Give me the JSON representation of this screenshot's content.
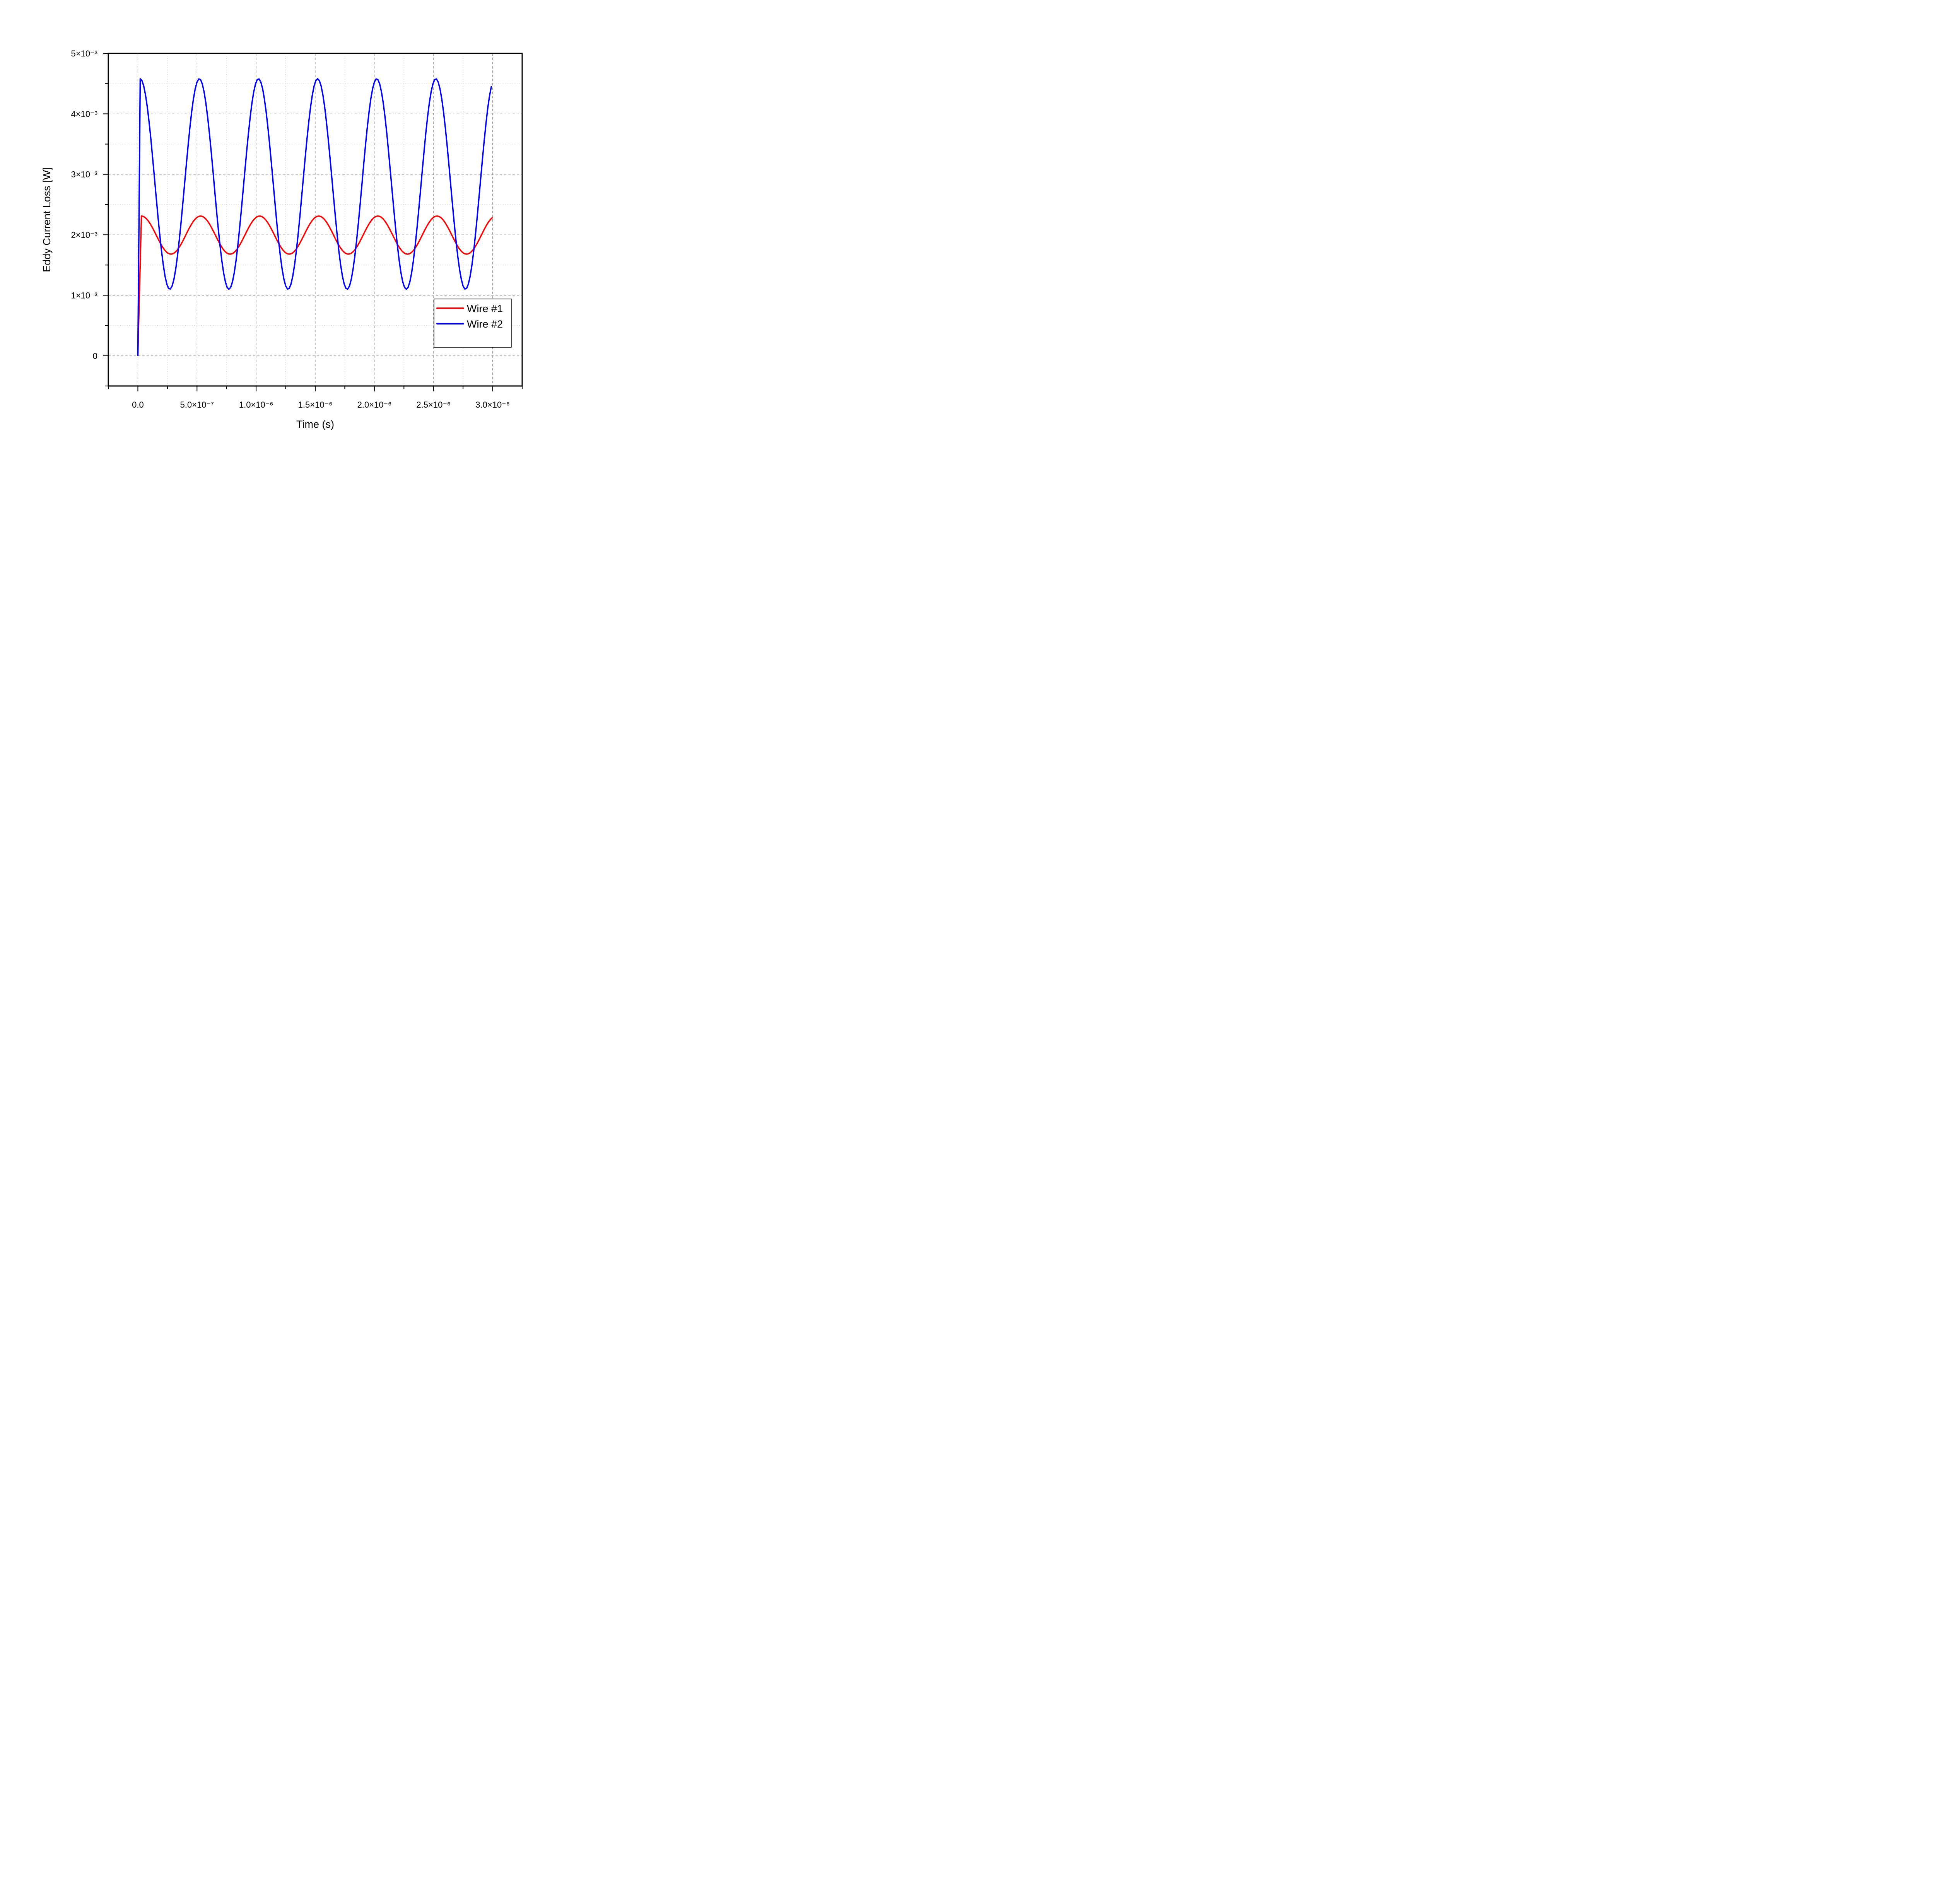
{
  "chart_data": {
    "type": "line",
    "title": "",
    "xlabel": "Time (s)",
    "ylabel": "Eddy Current Loss [W]",
    "xlim": [
      -2.5e-07,
      3.25e-06
    ],
    "ylim": [
      -0.0005,
      0.005
    ],
    "grid": true,
    "legend_position": "lower right (inside)",
    "x_ticks": [
      0,
      5e-07,
      1e-06,
      1.5e-06,
      2e-06,
      2.5e-06,
      3e-06
    ],
    "x_tick_labels": [
      "0.0",
      "5.0×10⁻⁷",
      "1.0×10⁻⁶",
      "1.5×10⁻⁶",
      "2.0×10⁻⁶",
      "2.5×10⁻⁶",
      "3.0×10⁻⁶"
    ],
    "y_ticks": [
      0,
      0.001,
      0.002,
      0.003,
      0.004,
      0.005
    ],
    "y_tick_labels": [
      "0",
      "1×10⁻³",
      "2×10⁻³",
      "3×10⁻³",
      "4×10⁻³",
      "5×10⁻³"
    ],
    "series": [
      {
        "name": "Wire #1",
        "color": "#ff0000",
        "description": "Starts at 0, jumps to ~2.31e-3 at t≈2e-8 s, then oscillates sinusoidally with period 5e-7 s between ~1.68e-3 and ~2.31e-3",
        "start": [
          0,
          0
        ],
        "mean": 0.001995,
        "amplitude": 0.000315,
        "period": 5e-07,
        "first_peak_t": 3e-08,
        "peaks_t": [
          3e-08,
          5.3e-07,
          1.03e-06,
          1.53e-06,
          2.03e-06,
          2.53e-06
        ],
        "peak_value": 0.00231,
        "troughs_t": [
          2.8e-07,
          7.8e-07,
          1.28e-06,
          1.78e-06,
          2.28e-06,
          2.78e-06
        ],
        "trough_value": 0.00168,
        "end": [
          3e-06,
          0.00228
        ]
      },
      {
        "name": "Wire #2",
        "color": "#0000ff",
        "description": "Starts at 0, jumps to ~4.58e-3 at t≈2e-8 s, then oscillates sinusoidally with period 5e-7 s between ~1.10e-3 and ~4.58e-3",
        "start": [
          0,
          0
        ],
        "mean": 0.00284,
        "amplitude": 0.00174,
        "period": 5e-07,
        "first_peak_t": 2e-08,
        "peaks_t": [
          2e-08,
          5.2e-07,
          1.02e-06,
          1.52e-06,
          2.02e-06,
          2.52e-06
        ],
        "peak_value": 0.00458,
        "troughs_t": [
          2.7e-07,
          7.7e-07,
          1.27e-06,
          1.77e-06,
          2.27e-06,
          2.77e-06
        ],
        "trough_value": 0.0011,
        "end": [
          3e-06,
          0.00456
        ]
      }
    ]
  },
  "axes": {
    "xlabel": "Time (s)",
    "ylabel": "Eddy Current Loss [W]"
  },
  "legend": {
    "items": [
      {
        "label": "Wire #1",
        "color": "#ff0000"
      },
      {
        "label": "Wire #2",
        "color": "#0000ff"
      }
    ]
  }
}
